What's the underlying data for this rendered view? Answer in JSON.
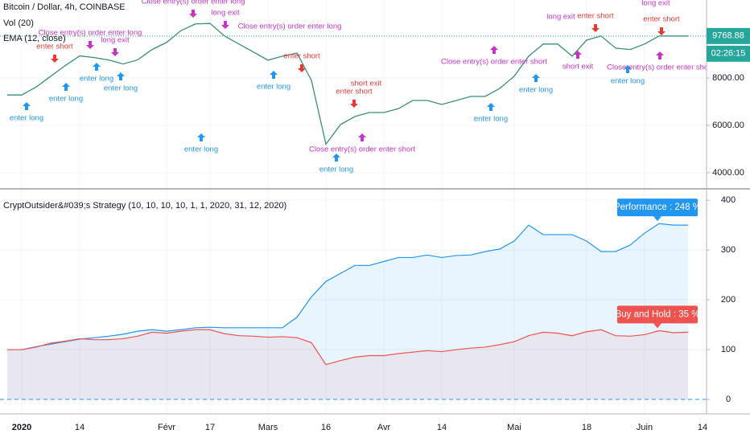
{
  "chart_data": [
    {
      "type": "line",
      "title": "Bitcoin / Dollar, 4h, COINBASE",
      "indicators": [
        "Vol (20)",
        "EMA (12, close)"
      ],
      "series": [
        {
          "color": "#3b8f73",
          "values": [
            7280,
            7280,
            7620,
            8070,
            8520,
            8930,
            8860,
            8760,
            8590,
            8760,
            9200,
            9500,
            10000,
            10280,
            10300,
            9770,
            9430,
            9090,
            8750,
            8920,
            9050,
            7900,
            5200,
            6030,
            6370,
            6540,
            6540,
            6700,
            7050,
            7050,
            6880,
            7050,
            7220,
            7220,
            7560,
            8070,
            8920,
            9430,
            9430,
            8920,
            9600,
            9770,
            9260,
            9200,
            9430,
            9770,
            9770,
            9770,
            null
          ]
        }
      ],
      "ylim": [
        3420,
        11290
      ],
      "yticks": [
        {
          "value": 4000,
          "label": "4000.00"
        },
        {
          "value": 6000,
          "label": "6000.00"
        },
        {
          "value": 8000,
          "label": "8000.00"
        }
      ],
      "last_price": 9768.88,
      "countdown": "02:26:15",
      "annotations": [
        {
          "text": "enter long",
          "color": "#2196f3"
        },
        {
          "text": "enter long",
          "color": "#2196f3"
        },
        {
          "text": "enter long",
          "color": "#2196f3"
        },
        {
          "text": "enter long",
          "color": "#2196f3"
        },
        {
          "text": "enter long",
          "color": "#2196f3"
        },
        {
          "text": "enter long",
          "color": "#2196f3"
        },
        {
          "text": "enter long",
          "color": "#2196f3"
        },
        {
          "text": "enter long",
          "color": "#2196f3"
        },
        {
          "text": "enter long",
          "color": "#2196f3"
        },
        {
          "text": "enter long",
          "color": "#2196f3"
        },
        {
          "text": "enter short",
          "color": "#e53935"
        },
        {
          "text": "enter short",
          "color": "#e53935"
        },
        {
          "text": "enter short",
          "color": "#e53935"
        },
        {
          "text": "enter short",
          "color": "#e53935"
        },
        {
          "text": "enter short",
          "color": "#e53935"
        },
        {
          "text": "Close entry(s) order enter long",
          "color": "#c534c5"
        },
        {
          "text": "Close entry(s) order enter long",
          "color": "#c534c5"
        },
        {
          "text": "Close entry(s) order enter short",
          "color": "#c534c5"
        },
        {
          "text": "Close entry(s) order enter short",
          "color": "#c534c5"
        },
        {
          "text": "long exit",
          "color": "#c534c5"
        },
        {
          "text": "long exit",
          "color": "#c534c5"
        },
        {
          "text": "long exit",
          "color": "#c534c5"
        },
        {
          "text": "long exit",
          "color": "#c534c5"
        },
        {
          "text": "short exit",
          "color": "#e53935"
        },
        {
          "text": "short exit",
          "color": "#c534c5"
        },
        {
          "text": "Close entry(s) order enter short",
          "color": "#c534c5"
        },
        {
          "text": "Close entry(s) order enter long",
          "color": "#c534c5"
        }
      ]
    },
    {
      "type": "line",
      "title": "CryptOutsider&#039;s Strategy (10, 10, 10, 10, 1, 1, 2020, 31, 12, 2020)",
      "categories": [
        null,
        "2020",
        null,
        null,
        null,
        "14",
        null,
        null,
        null,
        null,
        null,
        "Févr",
        null,
        null,
        "17",
        null,
        null,
        null,
        "Mars",
        null,
        null,
        null,
        "16",
        null,
        null,
        null,
        "Avr",
        null,
        null,
        null,
        "14",
        null,
        null,
        null,
        null,
        "Mai",
        null,
        null,
        null,
        null,
        "18",
        null,
        null,
        null,
        "Juin",
        null,
        null,
        null,
        "14"
      ],
      "series": [
        {
          "name": "Performance : 248 %",
          "color": "#2196f3",
          "fill": "rgba(33,150,243,0.10)",
          "values": [
            100,
            100,
            106,
            111,
            116,
            121,
            124,
            127,
            131,
            137,
            140,
            137,
            140,
            144,
            145,
            144,
            144,
            144,
            144,
            144,
            165,
            206,
            237,
            253,
            269,
            269,
            277,
            285,
            285,
            290,
            285,
            289,
            290,
            297,
            302,
            318,
            350,
            331,
            331,
            331,
            318,
            297,
            297,
            310,
            334,
            353,
            350,
            350,
            null
          ]
        },
        {
          "name": "Buy and Hold : 35 %",
          "color": "#ef5350",
          "fill": "rgba(239,83,80,0.08)",
          "values": [
            100,
            100,
            105,
            113,
            117,
            122,
            120,
            120,
            122,
            127,
            135,
            133,
            137,
            140,
            140,
            132,
            128,
            127,
            125,
            126,
            124,
            114,
            70,
            78,
            85,
            88,
            88,
            92,
            95,
            98,
            96,
            100,
            103,
            105,
            110,
            116,
            128,
            135,
            133,
            128,
            136,
            140,
            128,
            127,
            130,
            138,
            134,
            135,
            null
          ]
        }
      ],
      "ylim": [
        -29,
        418
      ],
      "yticks": [
        0,
        100,
        200,
        300,
        400
      ]
    }
  ]
}
